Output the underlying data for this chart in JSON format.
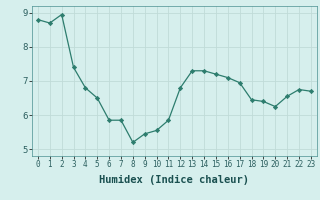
{
  "x": [
    0,
    1,
    2,
    3,
    4,
    5,
    6,
    7,
    8,
    9,
    10,
    11,
    12,
    13,
    14,
    15,
    16,
    17,
    18,
    19,
    20,
    21,
    22,
    23
  ],
  "y": [
    8.8,
    8.7,
    8.95,
    7.4,
    6.8,
    6.5,
    5.85,
    5.85,
    5.2,
    5.45,
    5.55,
    5.85,
    6.8,
    7.3,
    7.3,
    7.2,
    7.1,
    6.95,
    6.45,
    6.4,
    6.25,
    6.55,
    6.75,
    6.7
  ],
  "xlabel": "Humidex (Indice chaleur)",
  "ylim": [
    4.8,
    9.2
  ],
  "xlim": [
    -0.5,
    23.5
  ],
  "line_color": "#2d7d6e",
  "bg_color": "#d6efed",
  "grid_color": "#c0dbd8",
  "tick_labels": [
    "0",
    "1",
    "2",
    "3",
    "4",
    "5",
    "6",
    "7",
    "8",
    "9",
    "10",
    "11",
    "12",
    "13",
    "14",
    "15",
    "16",
    "17",
    "18",
    "19",
    "20",
    "21",
    "22",
    "23"
  ],
  "yticks": [
    5,
    6,
    7,
    8,
    9
  ],
  "marker": "D",
  "markersize": 2.2,
  "linewidth": 0.9,
  "xlabel_fontsize": 7.5,
  "tick_fontsize": 5.5,
  "ytick_fontsize": 6.5
}
